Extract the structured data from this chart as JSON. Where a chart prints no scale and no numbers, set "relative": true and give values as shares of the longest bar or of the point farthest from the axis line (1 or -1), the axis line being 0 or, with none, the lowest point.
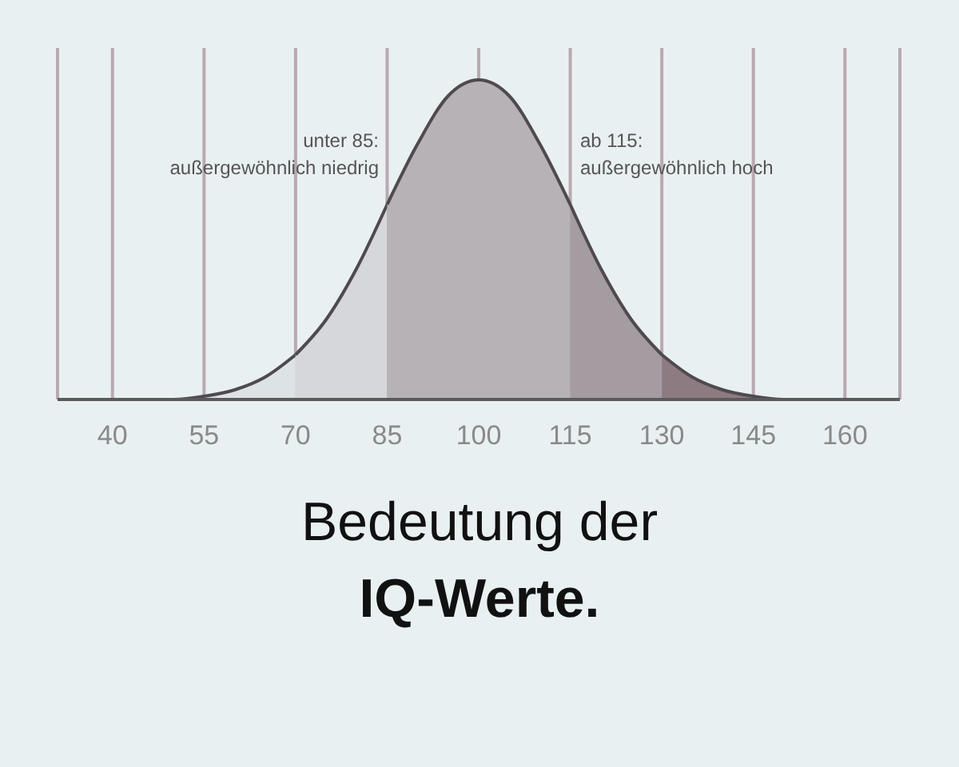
{
  "chart_data": {
    "type": "area",
    "title": "Bedeutung der",
    "subtitle": "IQ-Werte.",
    "relative": true,
    "xlim": [
      31,
      169
    ],
    "xticks": [
      40,
      55,
      70,
      85,
      100,
      115,
      130,
      145,
      160
    ],
    "grid": "x",
    "annotations": [
      "unter 85:\naußergewöhnlich niedrig",
      "ab 115:\naußergewöhnlich hoch"
    ],
    "series": [
      {
        "color": "#dde2e5",
        "x": [
          31,
          35,
          40,
          45,
          50,
          55,
          60,
          65,
          70
        ],
        "values": [
          0,
          0,
          0,
          0,
          0,
          0.01,
          0.03,
          0.07,
          0.14
        ]
      },
      {
        "color": "#d5d7da",
        "x": [
          70,
          75,
          80,
          85
        ],
        "values": [
          0.14,
          0.25,
          0.41,
          0.61
        ]
      },
      {
        "color": "#b6b2b6",
        "x": [
          85,
          90,
          95,
          100,
          105,
          110,
          115
        ],
        "values": [
          0.61,
          0.8,
          0.95,
          1,
          0.95,
          0.8,
          0.61
        ]
      },
      {
        "color": "#a49ca1",
        "x": [
          115,
          120,
          125,
          130
        ],
        "values": [
          0.61,
          0.41,
          0.25,
          0.14
        ]
      },
      {
        "color": "#8e7b82",
        "x": [
          130,
          135,
          140,
          145,
          150,
          155,
          160,
          165,
          169
        ],
        "values": [
          0.14,
          0.07,
          0.03,
          0.01,
          0,
          0,
          0,
          0,
          0
        ]
      }
    ]
  }
}
